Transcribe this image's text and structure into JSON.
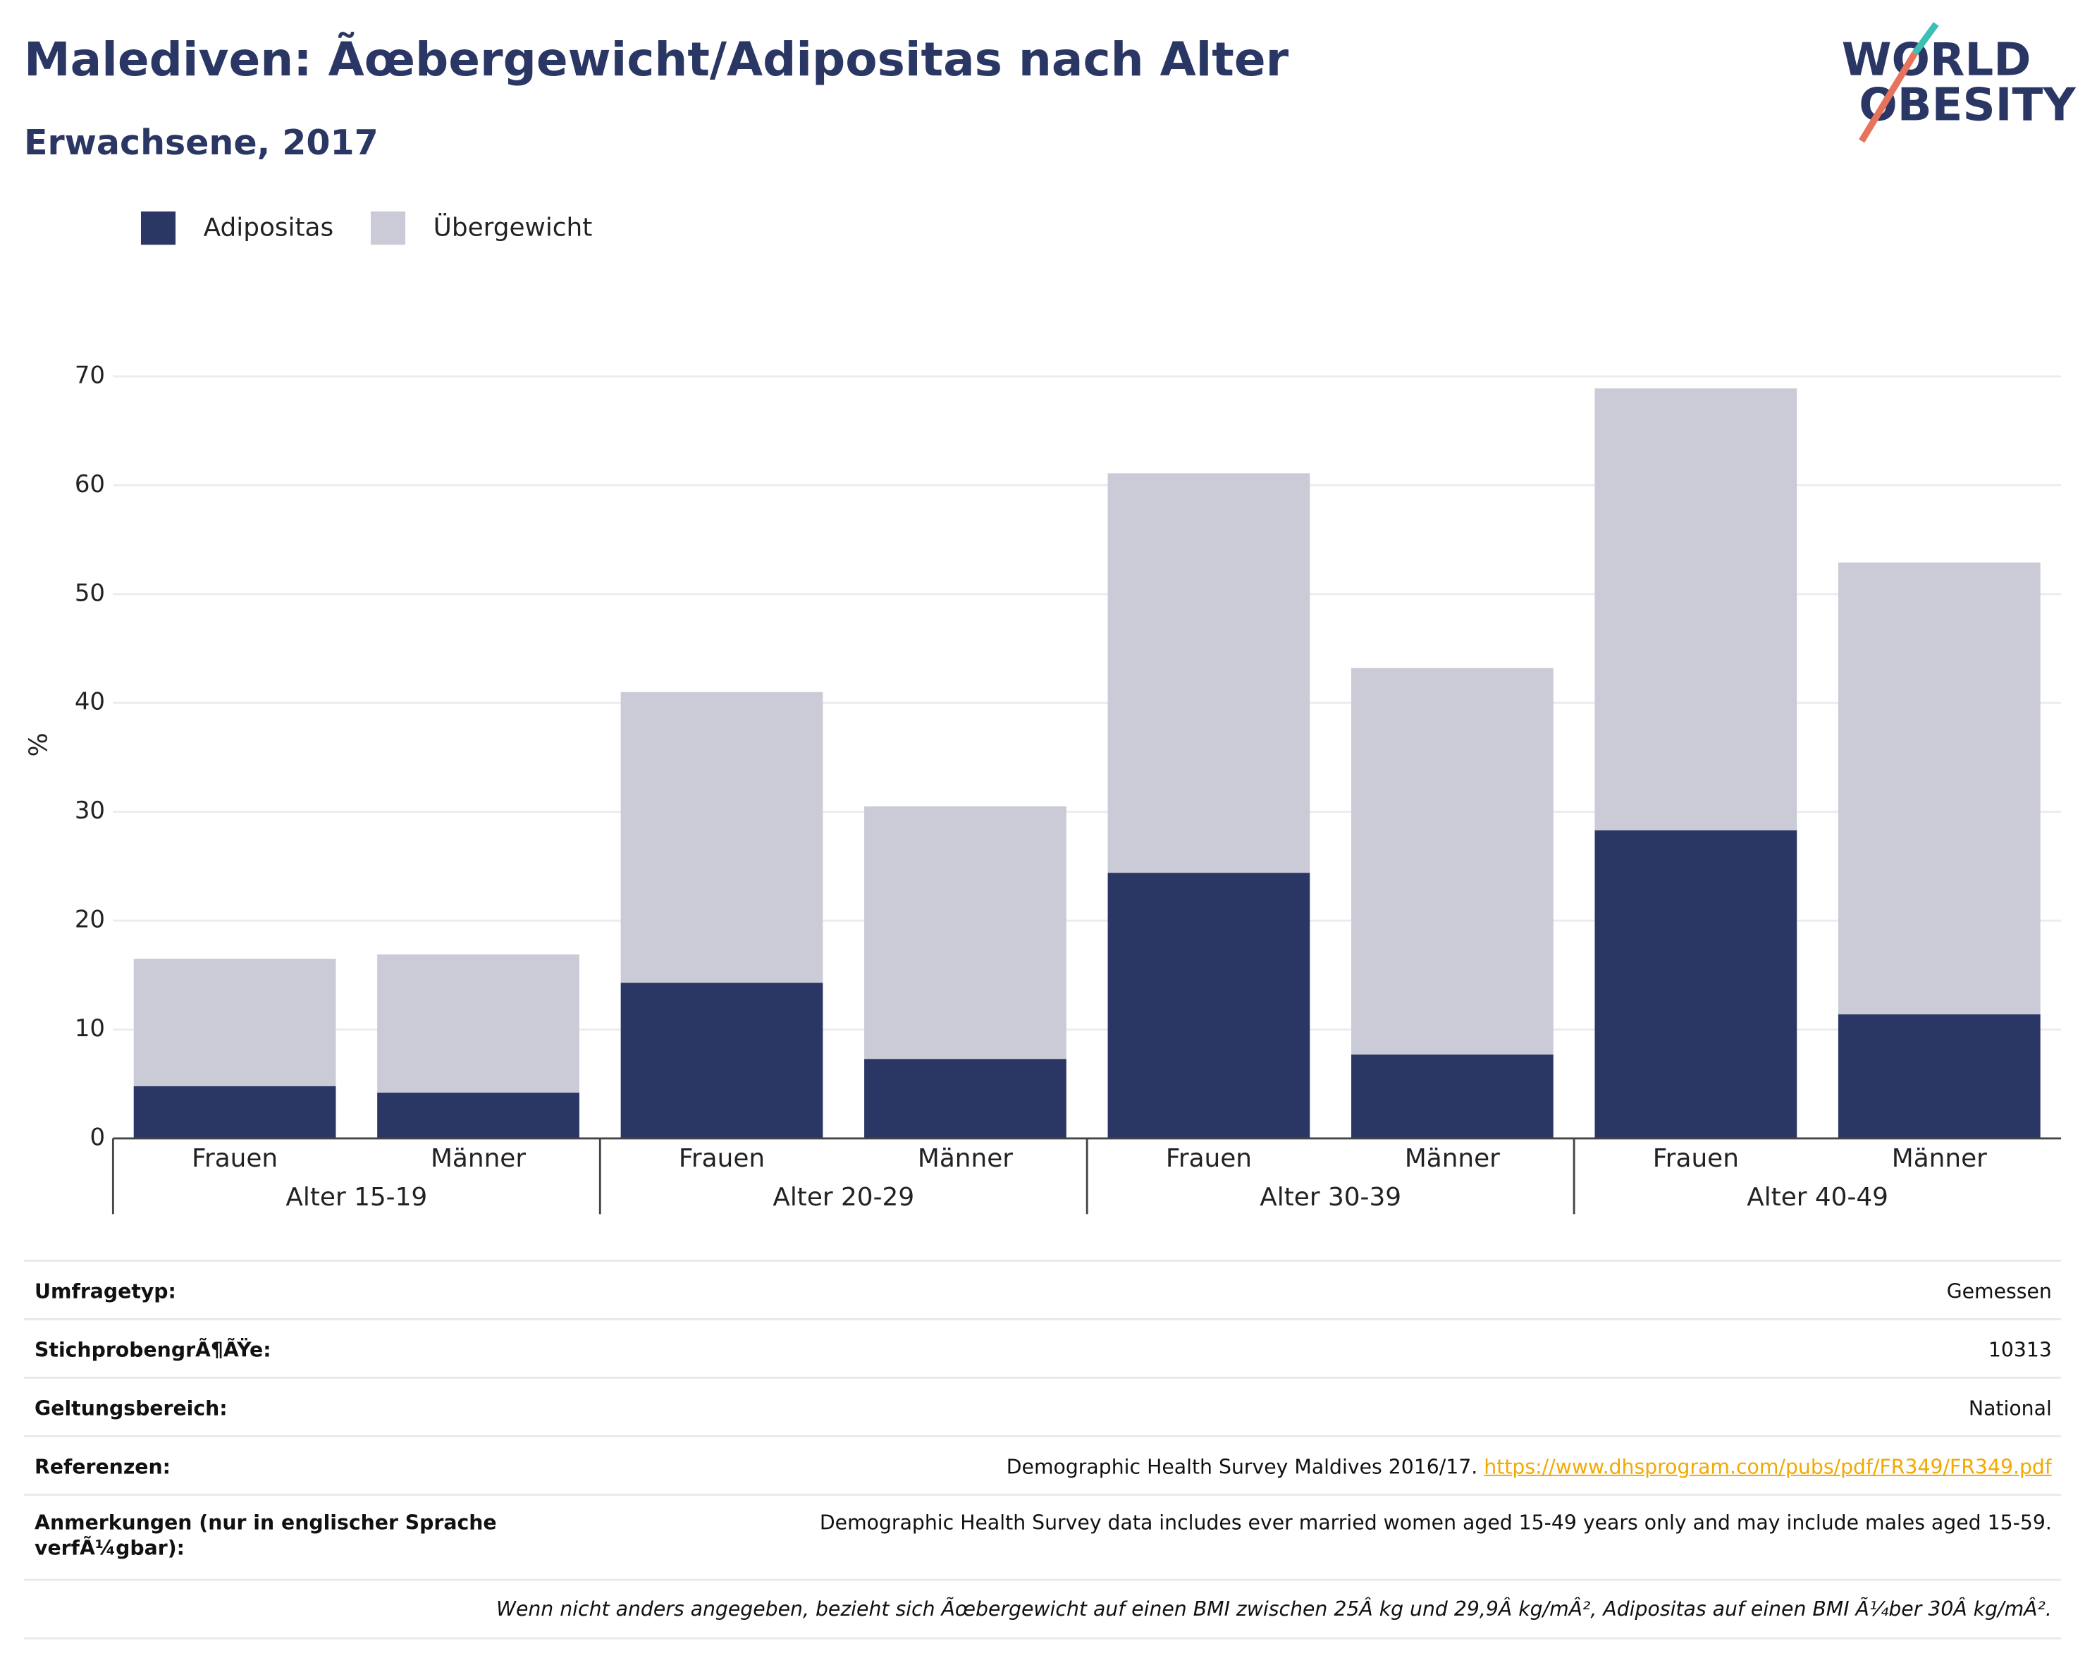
{
  "chart_data": {
    "type": "stacked_bar",
    "title": "Malediven: Ãœbergewicht/Adipositas nach Alter",
    "subtitle": "Erwachsene, 2017",
    "logo": [
      "WORLD",
      "OBESITY"
    ],
    "y_label": "%",
    "categories": [
      "Frauen",
      "Männer",
      "Frauen",
      "Männer",
      "Frauen",
      "Männer",
      "Frauen",
      "Männer"
    ],
    "groups": [
      "Alter 15-19",
      "Alter 20-29",
      "Alter 30-39",
      "Alter 40-49"
    ],
    "series": [
      {
        "name": "Adipositas",
        "color": "#2a3663",
        "values": [
          4.8,
          4.2,
          14.3,
          7.3,
          24.4,
          7.7,
          28.3,
          11.4
        ]
      },
      {
        "name": "Übergewicht",
        "color": "#cacbd6",
        "values": [
          11.7,
          12.7,
          26.7,
          23.2,
          36.7,
          35.5,
          40.6,
          41.5
        ]
      }
    ],
    "ylim": [
      0,
      70
    ],
    "yticks": [
      0,
      10,
      20,
      30,
      40,
      50,
      60,
      70
    ],
    "grid": true,
    "legend": "top-left"
  },
  "table": {
    "rows": [
      {
        "label": "Umfragetyp:",
        "value": "Gemessen"
      },
      {
        "label": "StichprobengrÃ¶ÃŸe:",
        "value": "10313"
      },
      {
        "label": "Geltungsbereich:",
        "value": "National"
      },
      {
        "label": "Referenzen:",
        "value": "Demographic Health Survey Maldives 2016/17.",
        "link": "https://www.dhsprogram.com/pubs/pdf/FR349/FR349.pdf"
      },
      {
        "label": "Anmerkungen (nur in englischer Sprache verfÃ¼gbar):",
        "value": "Demographic Health Survey data includes ever married women aged 15-49 years only and may include males aged 15-59."
      }
    ],
    "footnote": "Wenn nicht anders angegeben, bezieht sich Ãœbergewicht auf einen BMI zwischen 25Â kg und 29,9Â kg/mÂ², Adipositas auf einen BMI Ã¼ber 30Â kg/mÂ²."
  }
}
